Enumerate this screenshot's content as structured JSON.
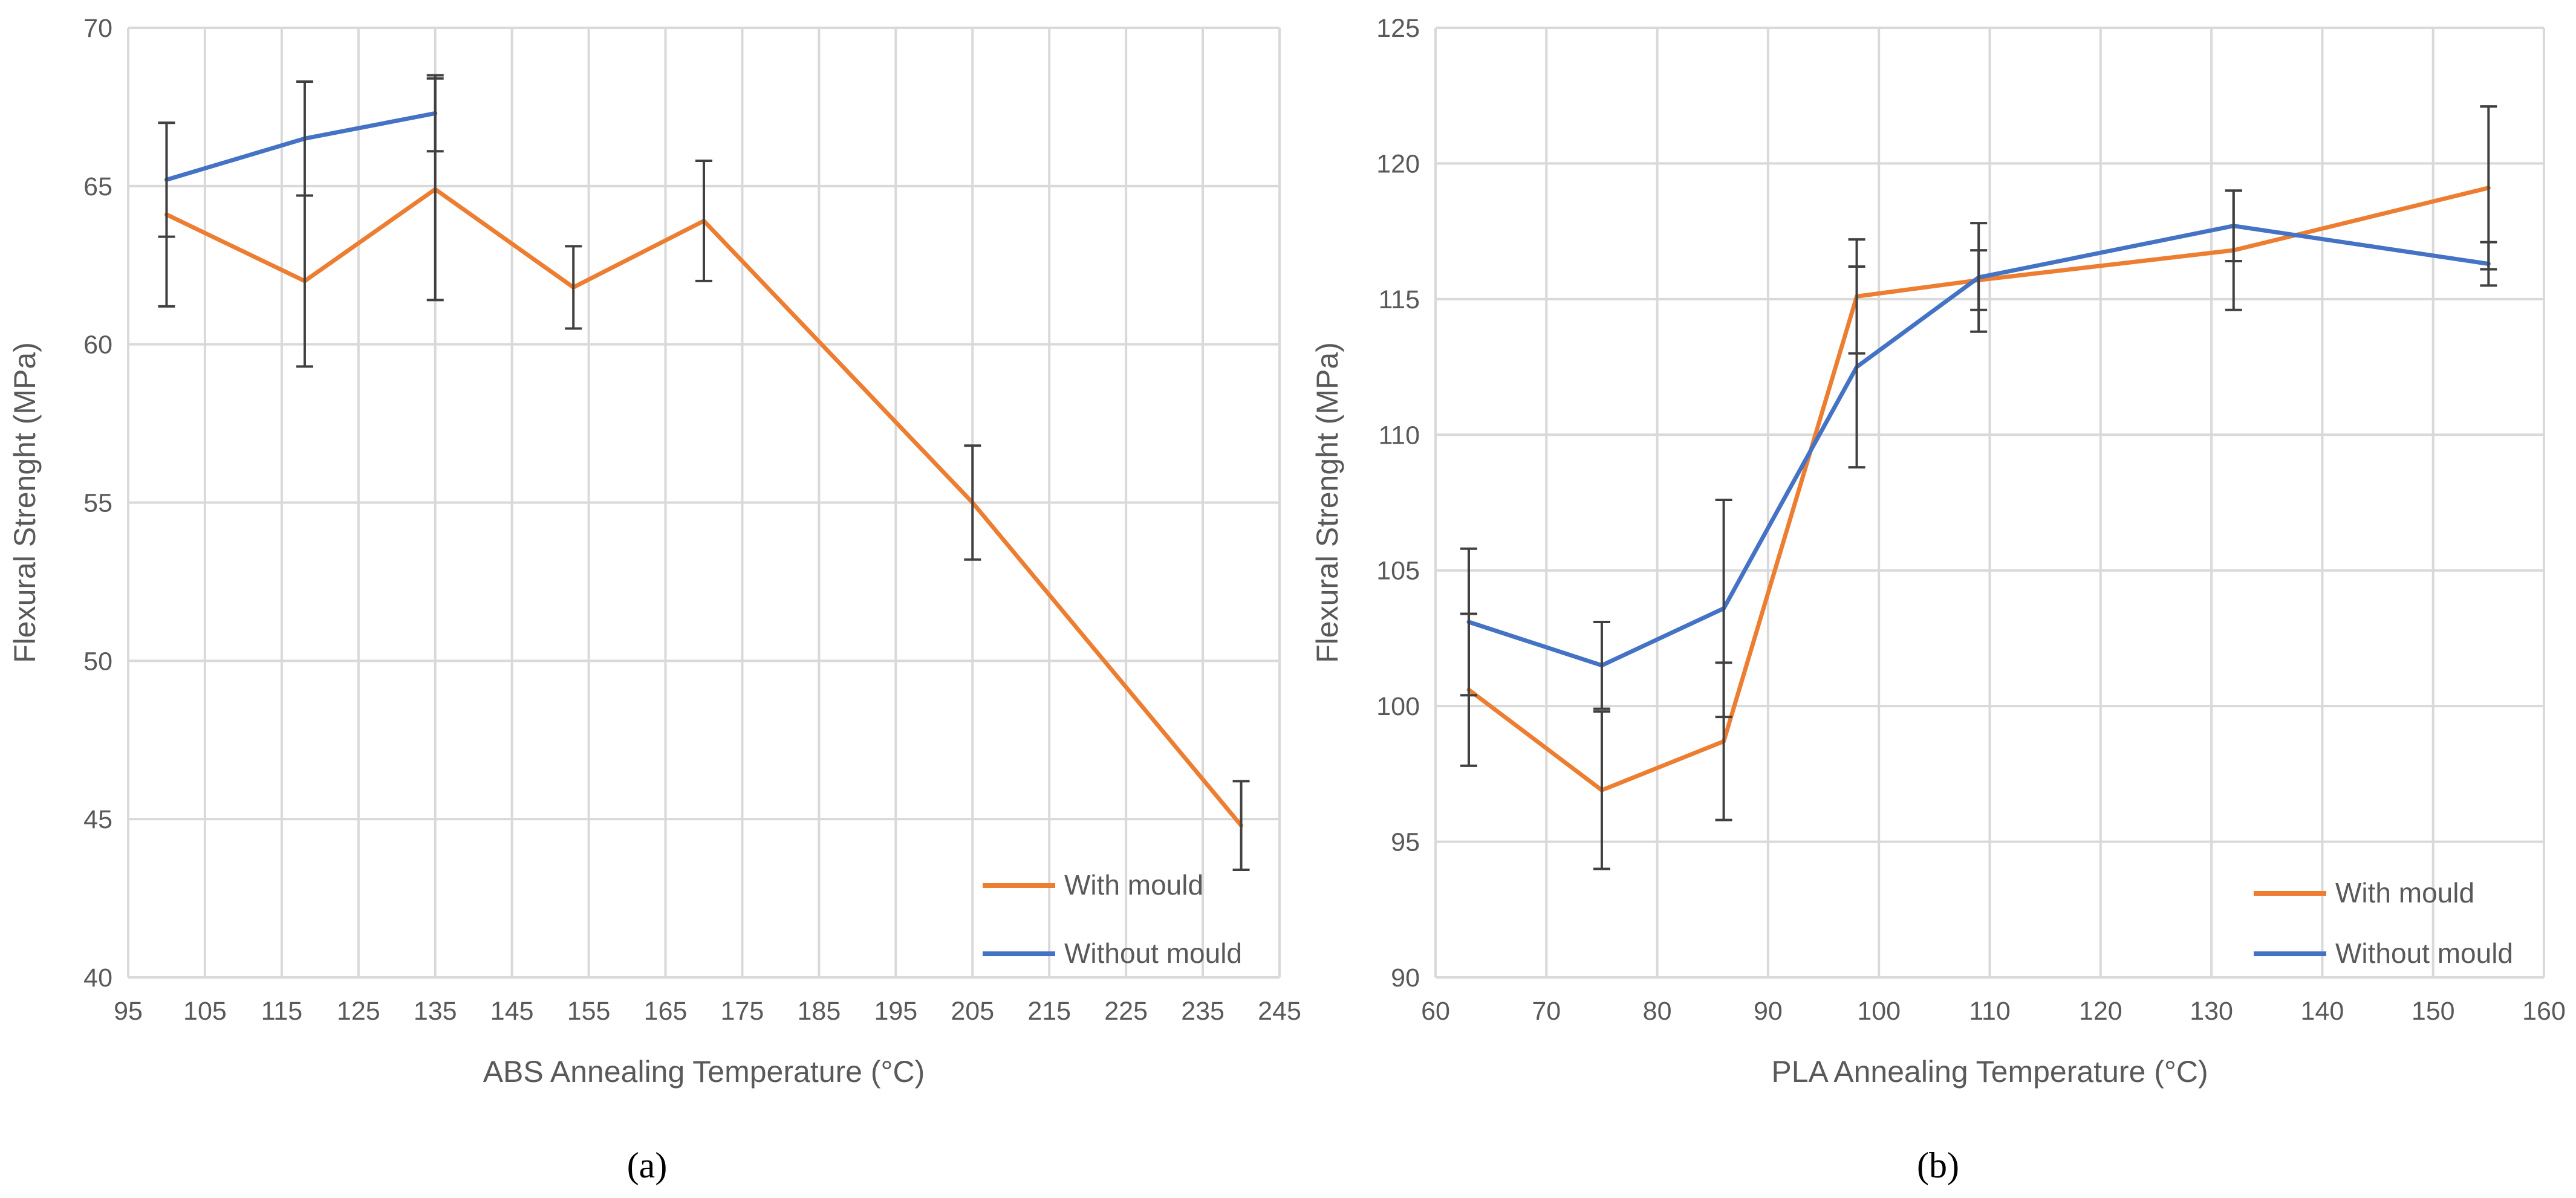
{
  "chart_data": [
    {
      "type": "line",
      "panel_label": "(a)",
      "title": "",
      "xlabel": "ABS Annealing Temperature (°C)",
      "ylabel": "Flexural Strenght (MPa)",
      "xlim": [
        95,
        245
      ],
      "ylim": [
        40,
        70
      ],
      "x_ticks": [
        95,
        105,
        115,
        125,
        135,
        145,
        155,
        165,
        175,
        185,
        195,
        205,
        215,
        225,
        235,
        245
      ],
      "y_ticks": [
        40,
        45,
        50,
        55,
        60,
        65,
        70
      ],
      "x_tick_labels": [
        "95",
        "105",
        "115",
        "125",
        "135",
        "145",
        "155",
        "165",
        "175",
        "185",
        "195",
        "205",
        "215",
        "225",
        "235",
        "245"
      ],
      "y_tick_labels": [
        "40",
        "45",
        "50",
        "55",
        "60",
        "65",
        "70"
      ],
      "grid": true,
      "legend_position": "bottom-right",
      "series": [
        {
          "name": "With mould",
          "color": "#ED7D31",
          "x": [
            100,
            118,
            135,
            153,
            170,
            205,
            240
          ],
          "y": [
            64.1,
            62.0,
            64.9,
            61.8,
            63.9,
            55.0,
            44.8
          ],
          "error": [
            2.9,
            2.7,
            3.5,
            1.3,
            1.9,
            1.8,
            1.4
          ]
        },
        {
          "name": "Without mould",
          "color": "#4472C4",
          "x": [
            100,
            118,
            135
          ],
          "y": [
            65.2,
            66.5,
            67.3
          ],
          "error": [
            1.8,
            1.8,
            1.2
          ]
        }
      ]
    },
    {
      "type": "line",
      "panel_label": "(b)",
      "title": "",
      "xlabel": "PLA Annealing Temperature (°C)",
      "ylabel": "Flexural Strenght (MPa)",
      "xlim": [
        60,
        160
      ],
      "ylim": [
        90,
        125
      ],
      "x_ticks": [
        60,
        70,
        80,
        90,
        100,
        110,
        120,
        130,
        140,
        150,
        160
      ],
      "y_ticks": [
        90,
        95,
        100,
        105,
        110,
        115,
        120,
        125
      ],
      "x_tick_labels": [
        "60",
        "70",
        "80",
        "90",
        "100",
        "110",
        "120",
        "130",
        "140",
        "150",
        "160"
      ],
      "y_tick_labels": [
        "90",
        "95",
        "100",
        "105",
        "110",
        "115",
        "120",
        "125"
      ],
      "grid": true,
      "legend_position": "bottom-right",
      "series": [
        {
          "name": "With mould",
          "color": "#ED7D31",
          "x": [
            63,
            75,
            86,
            98,
            109,
            132,
            155
          ],
          "y": [
            100.6,
            96.9,
            98.7,
            115.1,
            115.7,
            116.8,
            119.1
          ],
          "error": [
            2.8,
            2.9,
            2.9,
            2.1,
            1.1,
            2.2,
            3.0
          ]
        },
        {
          "name": "Without mould",
          "color": "#4472C4",
          "x": [
            63,
            75,
            86,
            98,
            109,
            132,
            155
          ],
          "y": [
            103.1,
            101.5,
            103.6,
            112.5,
            115.8,
            117.7,
            116.3
          ],
          "error": [
            2.7,
            1.6,
            4.0,
            3.7,
            2.0,
            1.3,
            0.8
          ]
        }
      ]
    }
  ]
}
